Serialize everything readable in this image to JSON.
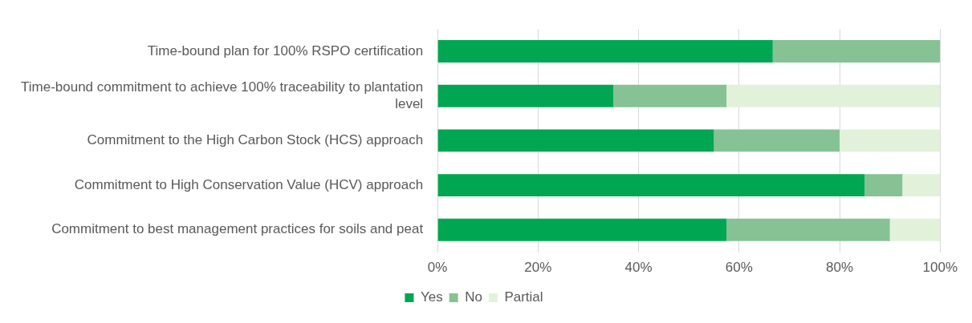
{
  "chart_data": {
    "type": "bar",
    "orientation": "horizontal",
    "stacked": true,
    "categories": [
      "Time-bound plan for 100% RSPO certification",
      "Time-bound commitment to achieve 100% traceability to plantation level",
      "Commitment to the High Carbon Stock (HCS) approach",
      "Commitment to High Conservation Value (HCV) approach",
      "Commitment to best management practices for soils and peat"
    ],
    "series": [
      {
        "name": "Yes",
        "color": "#00a651",
        "values": [
          66.7,
          35,
          55,
          85,
          57.5
        ]
      },
      {
        "name": "No",
        "color": "#86c294",
        "values": [
          33.3,
          22.5,
          25,
          7.5,
          32.5
        ]
      },
      {
        "name": "Partial",
        "color": "#e2f2da",
        "values": [
          0,
          42.5,
          20,
          7.5,
          10
        ]
      }
    ],
    "xlim": [
      0,
      100
    ],
    "xticks": [
      {
        "value": 0,
        "label": "0%"
      },
      {
        "value": 20,
        "label": "20%"
      },
      {
        "value": 40,
        "label": "40%"
      },
      {
        "value": 60,
        "label": "60%"
      },
      {
        "value": 80,
        "label": "80%"
      },
      {
        "value": 100,
        "label": "100%"
      }
    ],
    "grid": "x",
    "legend": "bottom"
  }
}
